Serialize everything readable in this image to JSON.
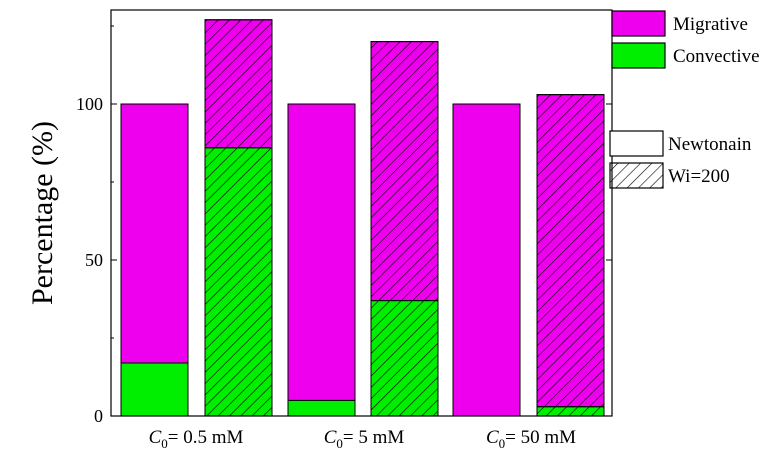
{
  "chart_data": {
    "type": "bar",
    "stacked": true,
    "ylabel": "Percentage (%)",
    "ylim": [
      0,
      130
    ],
    "yticks": [
      0,
      50,
      100
    ],
    "grid": false,
    "categories": [
      {
        "sym": "C",
        "sub": "0",
        "rest": "= 0.5 mM"
      },
      {
        "sym": "C",
        "sub": "0",
        "rest": "= 5 mM"
      },
      {
        "sym": "C",
        "sub": "0",
        "rest": "= 50 mM"
      }
    ],
    "bar_groups": [
      "Newtonain",
      "Wi=200"
    ],
    "series": [
      {
        "name": "Convective",
        "color": "#00ee00",
        "values": {
          "Newtonain": [
            17,
            5,
            0
          ],
          "Wi=200": [
            86,
            37,
            3
          ]
        }
      },
      {
        "name": "Migrative",
        "color": "#ee00ee",
        "values": {
          "Newtonain": [
            83,
            95,
            100
          ],
          "Wi=200": [
            41,
            83,
            100
          ]
        }
      }
    ],
    "totals": {
      "Newtonain": [
        100,
        100,
        100
      ],
      "Wi=200": [
        127,
        120,
        103
      ]
    },
    "legend_series": [
      "Migrative",
      "Convective"
    ],
    "legend_groups": [
      "Newtonain",
      "Wi=200"
    ],
    "legend_placement": "top-right"
  }
}
